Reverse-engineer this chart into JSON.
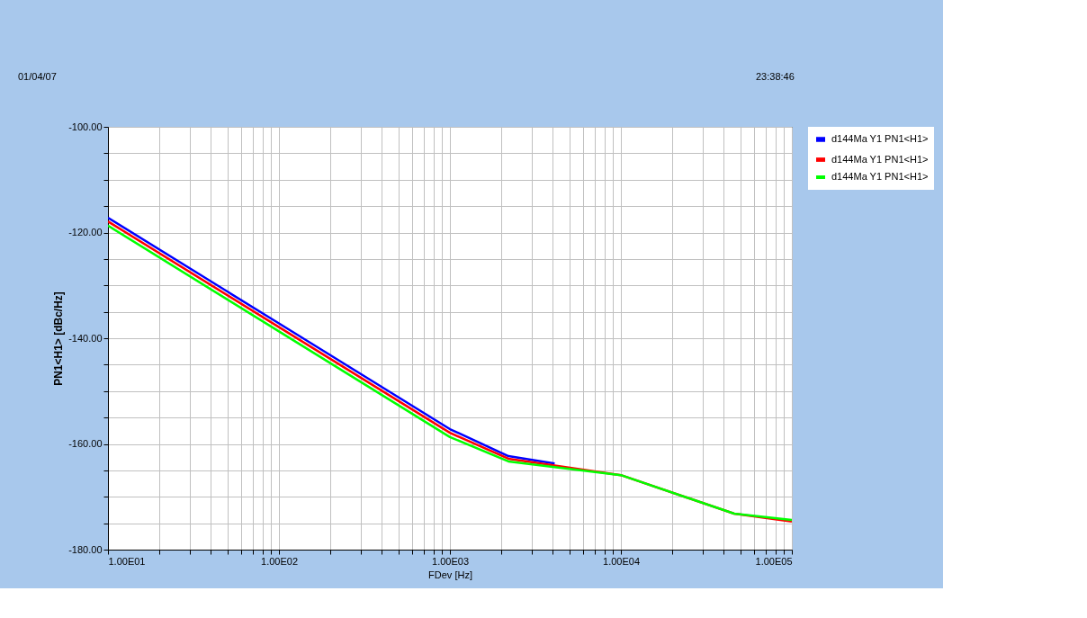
{
  "chart_data": {
    "type": "line",
    "xlabel": "FDev [Hz]",
    "ylabel": "PN1<H1> [dBc/Hz]",
    "log": "x",
    "grid": true,
    "legend": "right",
    "line_style": "solid",
    "annotations": [
      "01/04/07",
      "23:38:46"
    ],
    "xlim": [
      10,
      100000
    ],
    "ylim": [
      -180,
      -100
    ],
    "xticks": [
      {
        "value": 10,
        "label": "1.00E01"
      },
      {
        "value": 20,
        "label": null
      },
      {
        "value": 30,
        "label": null
      },
      {
        "value": 40,
        "label": null
      },
      {
        "value": 50,
        "label": null
      },
      {
        "value": 60,
        "label": null
      },
      {
        "value": 70,
        "label": null
      },
      {
        "value": 80,
        "label": null
      },
      {
        "value": 90,
        "label": null
      },
      {
        "value": 100,
        "label": "1.00E02"
      },
      {
        "value": 200,
        "label": null
      },
      {
        "value": 300,
        "label": null
      },
      {
        "value": 400,
        "label": null
      },
      {
        "value": 500,
        "label": null
      },
      {
        "value": 600,
        "label": null
      },
      {
        "value": 700,
        "label": null
      },
      {
        "value": 800,
        "label": null
      },
      {
        "value": 900,
        "label": null
      },
      {
        "value": 1000,
        "label": "1.00E03"
      },
      {
        "value": 2000,
        "label": null
      },
      {
        "value": 3000,
        "label": null
      },
      {
        "value": 4000,
        "label": null
      },
      {
        "value": 5000,
        "label": null
      },
      {
        "value": 6000,
        "label": null
      },
      {
        "value": 7000,
        "label": null
      },
      {
        "value": 8000,
        "label": null
      },
      {
        "value": 9000,
        "label": null
      },
      {
        "value": 10000,
        "label": "1.00E04"
      },
      {
        "value": 20000,
        "label": null
      },
      {
        "value": 30000,
        "label": null
      },
      {
        "value": 40000,
        "label": null
      },
      {
        "value": 50000,
        "label": null
      },
      {
        "value": 60000,
        "label": null
      },
      {
        "value": 70000,
        "label": null
      },
      {
        "value": 80000,
        "label": null
      },
      {
        "value": 90000,
        "label": null
      },
      {
        "value": 100000,
        "label": "1.00E05"
      }
    ],
    "yticks": [
      {
        "value": -180,
        "label": "-180.00"
      },
      {
        "value": -175,
        "label": null
      },
      {
        "value": -170,
        "label": null
      },
      {
        "value": -165,
        "label": null
      },
      {
        "value": -160,
        "label": "-160.00"
      },
      {
        "value": -155,
        "label": null
      },
      {
        "value": -150,
        "label": null
      },
      {
        "value": -145,
        "label": null
      },
      {
        "value": -140,
        "label": "-140.00"
      },
      {
        "value": -135,
        "label": null
      },
      {
        "value": -130,
        "label": null
      },
      {
        "value": -125,
        "label": null
      },
      {
        "value": -120,
        "label": "-120.00"
      },
      {
        "value": -115,
        "label": null
      },
      {
        "value": -110,
        "label": null
      },
      {
        "value": -105,
        "label": null
      },
      {
        "value": -100,
        "label": "-100.00"
      }
    ],
    "series": [
      {
        "name": "d144Ma Y1 PN1<H1>",
        "color": "#0000ff",
        "x": [
          10,
          100,
          1000,
          2200,
          4100
        ],
        "values": [
          -117.2,
          -137.2,
          -157.2,
          -162.3,
          -163.7
        ]
      },
      {
        "name": "d144Ma Y1 PN1<H1>",
        "color": "#ff0000",
        "x": [
          10,
          100,
          1000,
          2200,
          10000,
          46000,
          100000
        ],
        "values": [
          -117.9,
          -137.9,
          -157.9,
          -162.8,
          -165.9,
          -173.2,
          -174.7
        ]
      },
      {
        "name": "d144Ma Y1 PN1<H1>",
        "color": "#00ff00",
        "x": [
          10,
          100,
          1000,
          2200,
          10000,
          46000,
          100000
        ],
        "values": [
          -118.7,
          -138.7,
          -158.7,
          -163.3,
          -165.9,
          -173.2,
          -174.4
        ]
      }
    ]
  }
}
